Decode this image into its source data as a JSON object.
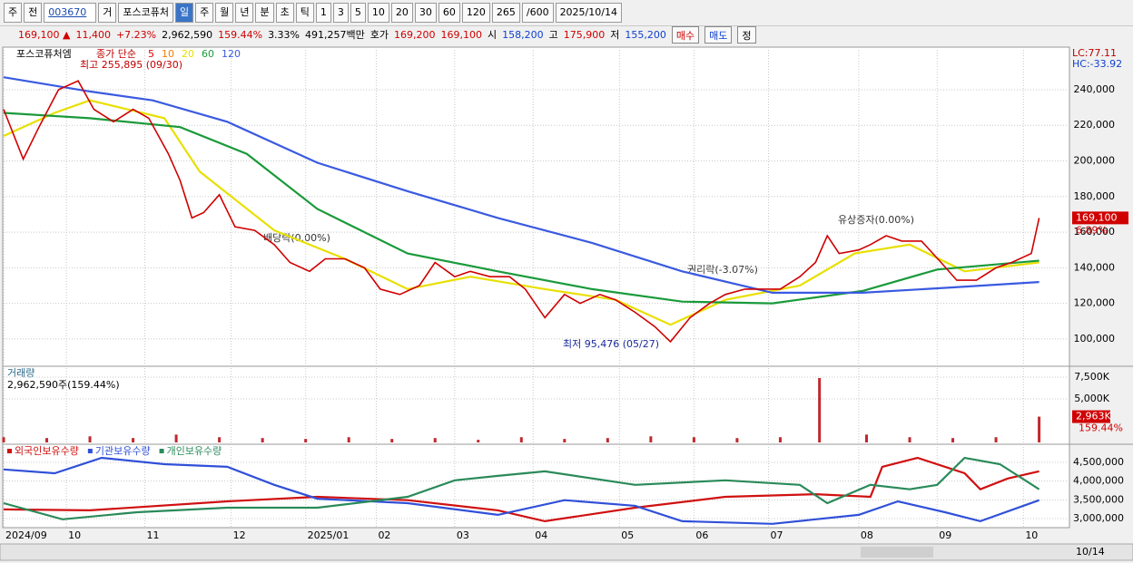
{
  "toolbar": {
    "items": [
      "주",
      "전",
      "003670",
      "거",
      "포스코퓨처",
      "일",
      "주",
      "월",
      "년",
      "분",
      "초",
      "틱",
      "1",
      "3",
      "5",
      "10",
      "20",
      "30",
      "60",
      "120",
      "265",
      "/600",
      "2025/10/14"
    ]
  },
  "quote": {
    "price": "169,100 ▲",
    "change": "11,400",
    "change_pct": "+7.23%",
    "volume": "2,962,590",
    "volume_ratio": "159.44%",
    "turnover": "3.33%",
    "amount": "491,257백만",
    "bid_label": "호가",
    "ask": "169,200",
    "bid": "169,100",
    "open_label": "시",
    "open": "158,200",
    "high_label": "고",
    "high": "175,900",
    "low_label": "저",
    "low": "155,200",
    "buy": "매수",
    "sell": "매도",
    "edit": "정"
  },
  "price_panel": {
    "name": "포스코퓨처엠",
    "ma_type": "종가 단순",
    "ylim": [
      85200,
      263900
    ],
    "yticks": [
      {
        "value": 100000,
        "label": "100,000"
      },
      {
        "value": 120000,
        "label": "120,000"
      },
      {
        "value": 140000,
        "label": "140,000"
      },
      {
        "value": 160000,
        "label": "160,000"
      },
      {
        "value": 180000,
        "label": "180,000"
      },
      {
        "value": 200000,
        "label": "200,000"
      },
      {
        "value": 220000,
        "label": "220,000"
      },
      {
        "value": 240000,
        "label": "240,000"
      }
    ],
    "close": {
      "color": "#d00000",
      "x": [
        0,
        5,
        9,
        14,
        19,
        23,
        28,
        33,
        37,
        42,
        45,
        48,
        51,
        55,
        59,
        64,
        69,
        73,
        78,
        82,
        87,
        92,
        96,
        101,
        106,
        110,
        115,
        119,
        124,
        129,
        133,
        138,
        143,
        147,
        152,
        156,
        161,
        166,
        170,
        175,
        180,
        184,
        189,
        194,
        198,
        203,
        207,
        210,
        213,
        218,
        221,
        225,
        229,
        234,
        239,
        243,
        248,
        253,
        257,
        262,
        264
      ],
      "values": [
        229000,
        201000,
        219000,
        240000,
        245000,
        229000,
        222000,
        229000,
        224000,
        204000,
        189000,
        168000,
        171000,
        181000,
        163000,
        161000,
        153000,
        143000,
        138000,
        145000,
        145000,
        140000,
        128000,
        125000,
        130000,
        143000,
        135000,
        138000,
        135000,
        135000,
        128000,
        112000,
        125000,
        120000,
        125000,
        122000,
        115000,
        107000,
        98500,
        112000,
        120000,
        125000,
        128000,
        128000,
        128000,
        135000,
        143000,
        158000,
        148000,
        150000,
        153000,
        158000,
        155000,
        155000,
        143000,
        133000,
        133000,
        140000,
        143000,
        148000,
        168000
      ]
    },
    "ma_labels": [
      {
        "label": "5",
        "color": "#e00000"
      },
      {
        "label": "10",
        "color": "#f08000"
      },
      {
        "label": "20",
        "color": "#e8e000",
        "x": [
          0,
          13,
          22,
          41,
          50,
          69,
          87,
          103,
          119,
          138,
          156,
          170,
          184,
          203,
          217,
          231,
          245,
          264
        ],
        "values": [
          214000,
          227000,
          234000,
          224000,
          194000,
          161000,
          145000,
          128000,
          135000,
          128000,
          122000,
          108000,
          122000,
          130000,
          148000,
          153000,
          138000,
          143000
        ]
      },
      {
        "label": "60",
        "color": "#1a9a3a",
        "x": [
          0,
          22,
          45,
          62,
          80,
          103,
          126,
          150,
          173,
          196,
          219,
          238,
          264
        ],
        "values": [
          227000,
          224000,
          219000,
          204000,
          173000,
          148000,
          138000,
          128000,
          121000,
          120000,
          127000,
          139000,
          144000
        ]
      },
      {
        "label": "120",
        "color": "#3a5ae0",
        "x": [
          0,
          22,
          38,
          57,
          80,
          103,
          126,
          150,
          173,
          196,
          219,
          242,
          264
        ],
        "values": [
          247000,
          239000,
          234000,
          222000,
          199000,
          183000,
          168000,
          154000,
          138000,
          126000,
          126000,
          129000,
          132000
        ]
      }
    ],
    "annotations": [
      "최고 255,895 (09/30)",
      "배당락(0.00%)",
      "권리락(-3.07%)",
      "유상증자(0.00%)",
      "최저 95,476 (05/27)"
    ],
    "last_price": "169,100",
    "last_change": "6.89%",
    "lc": "LC:77.11",
    "hc": "HC:-33.92"
  },
  "volume_panel": {
    "name": "거래량",
    "summary": "2,962,590주(159.44%)",
    "color": "#c0282e",
    "ylim": [
      0,
      8650
    ],
    "yticks": [
      {
        "value": 5000,
        "label": "5,000K"
      },
      {
        "value": 7500,
        "label": "7,500K"
      }
    ],
    "x": [
      0,
      11,
      22,
      33,
      44,
      55,
      66,
      77,
      88,
      99,
      110,
      121,
      132,
      143,
      154,
      165,
      176,
      187,
      198,
      208,
      220,
      231,
      242,
      253,
      264
    ],
    "values": [
      600,
      500,
      700,
      500,
      900,
      600,
      500,
      400,
      600,
      400,
      500,
      300,
      600,
      400,
      500,
      700,
      600,
      500,
      600,
      7400,
      900,
      600,
      500,
      600,
      2963
    ],
    "last_label": "2,963K",
    "last_ratio": "159.44%"
  },
  "holdings_panel": {
    "ylim": [
      2758000,
      4959000
    ],
    "yticks": [
      {
        "value": 3000000,
        "label": "3,000,000"
      },
      {
        "value": 3500000,
        "label": "3,500,000"
      },
      {
        "value": 4000000,
        "label": "4,000,000"
      },
      {
        "value": 4500000,
        "label": "4,500,000"
      }
    ],
    "series": [
      {
        "name": "외국인보유수량",
        "color": "#d01010",
        "x": [
          0,
          22,
          57,
          80,
          103,
          126,
          138,
          161,
          184,
          207,
          221,
          224,
          233,
          245,
          249,
          256,
          264
        ],
        "values": [
          3244000,
          3220000,
          3460000,
          3580000,
          3490000,
          3220000,
          2930000,
          3290000,
          3580000,
          3650000,
          3580000,
          4380000,
          4620000,
          4210000,
          3780000,
          4070000,
          4260000
        ]
      },
      {
        "name": "기관보유수량",
        "color": "#3050d8",
        "x": [
          0,
          13,
          25,
          41,
          57,
          69,
          80,
          103,
          126,
          143,
          161,
          173,
          196,
          218,
          228,
          240,
          249,
          264
        ],
        "values": [
          4310000,
          4210000,
          4620000,
          4450000,
          4380000,
          3900000,
          3530000,
          3410000,
          3100000,
          3490000,
          3340000,
          2930000,
          2860000,
          3100000,
          3460000,
          3170000,
          2930000,
          3490000
        ]
      },
      {
        "name": "개인보유수량",
        "color": "#2a8a5a",
        "x": [
          0,
          15,
          34,
          57,
          80,
          103,
          115,
          126,
          138,
          161,
          184,
          203,
          210,
          221,
          231,
          238,
          245,
          254,
          264
        ],
        "values": [
          3410000,
          2980000,
          3170000,
          3290000,
          3290000,
          3580000,
          4020000,
          4140000,
          4260000,
          3900000,
          4020000,
          3900000,
          3410000,
          3900000,
          3780000,
          3900000,
          4620000,
          4450000,
          3780000
        ]
      }
    ]
  },
  "xaxis": {
    "xlim": [
      0,
      271.5
    ],
    "xticks": [
      {
        "value": 0,
        "label": "2024/09"
      },
      {
        "value": 16,
        "label": "10"
      },
      {
        "value": 36,
        "label": "11"
      },
      {
        "value": 58,
        "label": "12"
      },
      {
        "value": 77,
        "label": "2025/01"
      },
      {
        "value": 95,
        "label": "02"
      },
      {
        "value": 115,
        "label": "03"
      },
      {
        "value": 135,
        "label": "04"
      },
      {
        "value": 157,
        "label": "05"
      },
      {
        "value": 176,
        "label": "06"
      },
      {
        "value": 195,
        "label": "07"
      },
      {
        "value": 218,
        "label": "08"
      },
      {
        "value": 238,
        "label": "09"
      },
      {
        "value": 260,
        "label": "10"
      }
    ],
    "end_label": "10/14"
  }
}
